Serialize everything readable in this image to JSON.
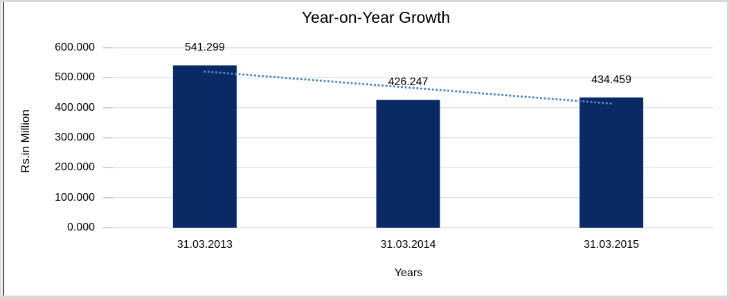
{
  "frame": {
    "background": "#FFFFFF",
    "border_color": "#D8D8D8",
    "left_rule_color": "#555555"
  },
  "chart_data": {
    "type": "bar",
    "title": "Year-on-Year Growth",
    "xlabel": "Years",
    "ylabel": "Rs.in Million",
    "categories": [
      "31.03.2013",
      "31.03.2014",
      "31.03.2015"
    ],
    "values": [
      541.299,
      426.247,
      434.459
    ],
    "point_labels": [
      "541.299",
      "426.247",
      "434.459"
    ],
    "ylim": [
      0,
      600
    ],
    "ytick_step": 100,
    "ytick_labels": [
      "0.000",
      "100.000",
      "200.000",
      "300.000",
      "400.000",
      "500.000",
      "600.000"
    ],
    "grid": "horizontal",
    "legend": "none",
    "text_color": "#000000",
    "bar_color": "#0A2A66",
    "gridline_color": "#D9D9D9",
    "tick_color": "#BFBFBF",
    "trendline": {
      "type": "linear",
      "style": "dotted",
      "color": "#4E87C6",
      "start_value": 520.8,
      "end_value": 413.9
    }
  }
}
